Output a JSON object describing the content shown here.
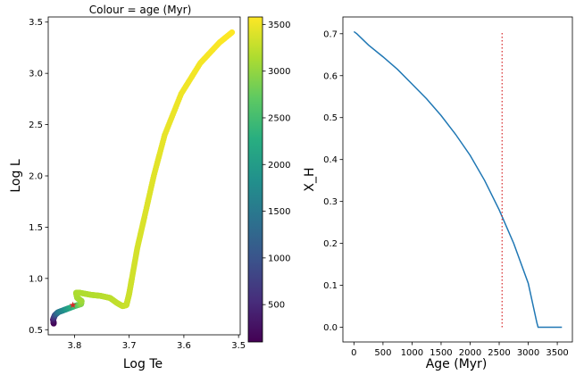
{
  "chart_data": [
    {
      "type": "scatter",
      "title": "Colour = age (Myr)",
      "xlabel": "Log Te",
      "ylabel": "Log L",
      "x_inverted": true,
      "xlim": [
        3.848,
        3.497
      ],
      "ylim": [
        0.45,
        3.55
      ],
      "xticks": [
        3.8,
        3.7,
        3.6,
        3.5
      ],
      "xtick_labels": [
        "3.8",
        "3.7",
        "3.6",
        "3.5"
      ],
      "yticks": [
        0.5,
        1.0,
        1.5,
        2.0,
        2.5,
        3.0,
        3.5
      ],
      "ytick_labels": [
        "0.5",
        "1.0",
        "1.5",
        "2.0",
        "2.5",
        "3.0",
        "3.5"
      ],
      "colormap": "viridis",
      "colorbar": {
        "range": [
          100,
          3580
        ],
        "ticks": [
          500,
          1000,
          1500,
          2000,
          2500,
          3000,
          3500
        ],
        "tick_labels": [
          "500",
          "1000",
          "1500",
          "2000",
          "2500",
          "3000",
          "3500"
        ]
      },
      "track": [
        {
          "logTe": 3.838,
          "logL": 0.56,
          "age": 100
        },
        {
          "logTe": 3.839,
          "logL": 0.6,
          "age": 300
        },
        {
          "logTe": 3.836,
          "logL": 0.64,
          "age": 800
        },
        {
          "logTe": 3.83,
          "logL": 0.67,
          "age": 1400
        },
        {
          "logTe": 3.815,
          "logL": 0.7,
          "age": 1900
        },
        {
          "logTe": 3.8,
          "logL": 0.73,
          "age": 2400
        },
        {
          "logTe": 3.788,
          "logL": 0.75,
          "age": 2900
        },
        {
          "logTe": 3.787,
          "logL": 0.78,
          "age": 3050
        },
        {
          "logTe": 3.795,
          "logL": 0.81,
          "age": 3100
        },
        {
          "logTe": 3.797,
          "logL": 0.86,
          "age": 3130
        },
        {
          "logTe": 3.79,
          "logL": 0.86,
          "age": 3150
        },
        {
          "logTe": 3.77,
          "logL": 0.84,
          "age": 3170
        },
        {
          "logTe": 3.752,
          "logL": 0.83,
          "age": 3190
        },
        {
          "logTe": 3.735,
          "logL": 0.81,
          "age": 3220
        },
        {
          "logTe": 3.722,
          "logL": 0.76,
          "age": 3250
        },
        {
          "logTe": 3.712,
          "logL": 0.73,
          "age": 3270
        },
        {
          "logTe": 3.705,
          "logL": 0.74,
          "age": 3290
        },
        {
          "logTe": 3.7,
          "logL": 0.85,
          "age": 3310
        },
        {
          "logTe": 3.695,
          "logL": 1.0,
          "age": 3330
        },
        {
          "logTe": 3.685,
          "logL": 1.3,
          "age": 3360
        },
        {
          "logTe": 3.672,
          "logL": 1.6,
          "age": 3390
        },
        {
          "logTe": 3.655,
          "logL": 2.0,
          "age": 3420
        },
        {
          "logTe": 3.635,
          "logL": 2.4,
          "age": 3460
        },
        {
          "logTe": 3.605,
          "logL": 2.8,
          "age": 3500
        },
        {
          "logTe": 3.57,
          "logL": 3.1,
          "age": 3530
        },
        {
          "logTe": 3.535,
          "logL": 3.3,
          "age": 3560
        },
        {
          "logTe": 3.512,
          "logL": 3.4,
          "age": 3580
        }
      ],
      "marker_point": {
        "logTe": 3.803,
        "logL": 0.74,
        "color": "#d62728"
      }
    },
    {
      "type": "line",
      "xlabel": "Age (Myr)",
      "ylabel": "X_H",
      "xlim": [
        -190,
        3760
      ],
      "ylim": [
        -0.035,
        0.74
      ],
      "xticks": [
        0,
        500,
        1000,
        1500,
        2000,
        2500,
        3000,
        3500
      ],
      "xtick_labels": [
        "0",
        "500",
        "1000",
        "1500",
        "2000",
        "2500",
        "3000",
        "3500"
      ],
      "yticks": [
        0.0,
        0.1,
        0.2,
        0.3,
        0.4,
        0.5,
        0.6,
        0.7
      ],
      "ytick_labels": [
        "0.0",
        "0.1",
        "0.2",
        "0.3",
        "0.4",
        "0.5",
        "0.6",
        "0.7"
      ],
      "series": [
        {
          "color": "#1f77b4",
          "x": [
            0,
            50,
            250,
            500,
            750,
            1000,
            1250,
            1500,
            1750,
            2000,
            2250,
            2500,
            2750,
            3000,
            3150,
            3170,
            3580
          ],
          "y": [
            0.705,
            0.7,
            0.673,
            0.645,
            0.615,
            0.58,
            0.545,
            0.505,
            0.46,
            0.41,
            0.35,
            0.28,
            0.2,
            0.105,
            0.01,
            0.0,
            0.0
          ]
        }
      ],
      "vline": {
        "x": 2550,
        "ymin": 0.0,
        "ymax": 0.705,
        "color": "#d62728",
        "style": "dotted"
      }
    }
  ]
}
